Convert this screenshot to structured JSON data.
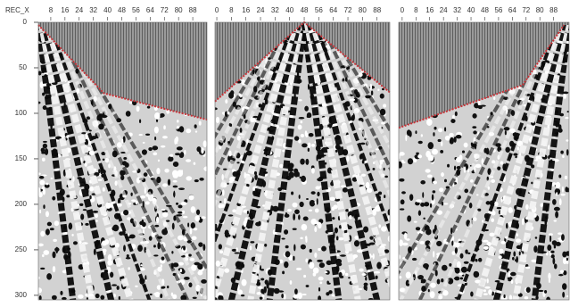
{
  "chart_data": [
    {
      "type": "seismic",
      "axis_label": "REC_X",
      "xlim": [
        1,
        96
      ],
      "xticks": [
        8,
        16,
        24,
        32,
        40,
        48,
        56,
        64,
        72,
        80,
        88
      ],
      "ylim": [
        0,
        305
      ],
      "yticks": [
        0,
        50,
        100,
        150,
        200,
        250,
        300
      ],
      "picks": {
        "x": [
          1,
          38,
          96
        ],
        "values": [
          3,
          78,
          107
        ],
        "color": "#c8353a"
      }
    },
    {
      "type": "seismic",
      "xlim": [
        -1,
        95
      ],
      "xticks": [
        0,
        8,
        16,
        24,
        32,
        40,
        48,
        56,
        64,
        72,
        80,
        88
      ],
      "ylim": [
        0,
        305
      ],
      "picks": {
        "x": [
          -1,
          48,
          95
        ],
        "values": [
          87,
          0,
          77
        ],
        "color": "#c8353a"
      }
    },
    {
      "type": "seismic",
      "xlim": [
        -2,
        97
      ],
      "xticks": [
        0,
        8,
        16,
        24,
        32,
        40,
        48,
        56,
        64,
        72,
        80,
        88
      ],
      "ylim": [
        0,
        305
      ],
      "picks": {
        "x": [
          -2,
          70,
          94
        ],
        "values": [
          116,
          69,
          3
        ],
        "color": "#c8353a"
      }
    }
  ]
}
